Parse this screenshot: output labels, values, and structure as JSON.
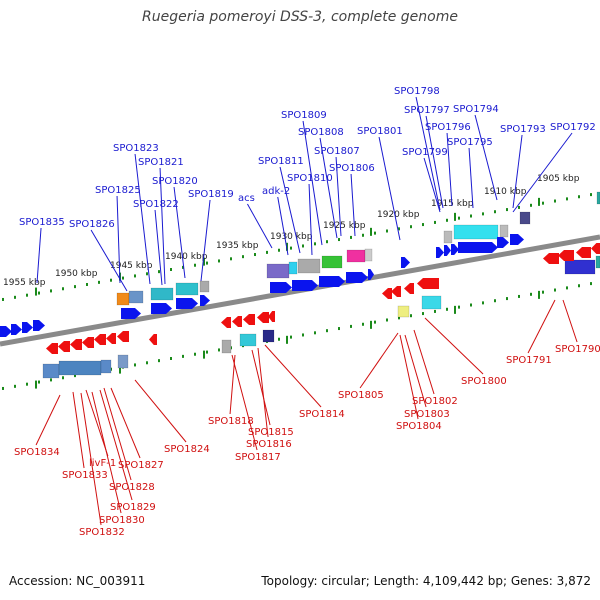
{
  "title": "Ruegeria pomeroyi DSS-3, complete genome",
  "footer": {
    "accession": "Accession: NC_003911",
    "topology": "Topology: circular; Length: 4,109,442 bp; Genes: 3,872"
  },
  "colors": {
    "plus_label": "#1a1ad0",
    "minus_label": "#d01010",
    "plus_arrow": "#0a14ee",
    "minus_arrow": "#ee1010",
    "tick": "#1a8a1a",
    "backbone": "#888888"
  },
  "kbp_labels": [
    "1955 kbp",
    "1950 kbp",
    "1945 kbp",
    "1940 kbp",
    "1935 kbp",
    "1930 kbp",
    "1925 kbp",
    "1920 kbp",
    "1915 kbp",
    "1910 kbp",
    "1905 kbp"
  ],
  "plus_labels": [
    "SPO1798",
    "SPO1797",
    "SPO1794",
    "SPO1809",
    "SPO1796",
    "SPO1801",
    "SPO1793",
    "SPO1792",
    "SPO1808",
    "SPO1795",
    "SPO1823",
    "SPO1807",
    "SPO1799",
    "SPO1811",
    "SPO1806",
    "SPO1821",
    "SPO1810",
    "SPO1820",
    "adk-2",
    "SPO1825",
    "SPO1819",
    "acs",
    "SPO1822",
    "SPO1835",
    "SPO1826"
  ],
  "minus_labels": [
    "SPO1791",
    "SPO1790",
    "SPO1800",
    "SPO1805",
    "SPO1802",
    "SPO1803",
    "SPO1804",
    "SPO1814",
    "SPO1818",
    "SPO1815",
    "SPO1816",
    "SPO1817",
    "SPO1824",
    "SPO1834",
    "livF-1",
    "SPO1827",
    "SPO1833",
    "SPO1828",
    "SPO1829",
    "SPO1830",
    "SPO1832"
  ]
}
